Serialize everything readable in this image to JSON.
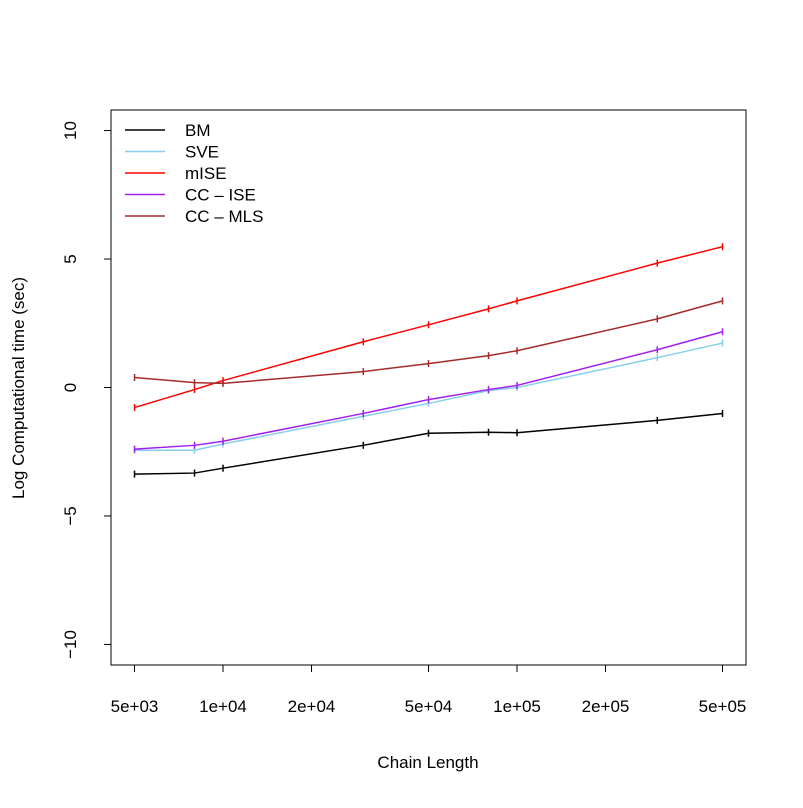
{
  "chart_data": {
    "type": "line",
    "x_label": "Chain Length",
    "y_label": "Log Computational time (sec)",
    "x_log": true,
    "x": [
      5000,
      8000,
      10000,
      30000,
      50000,
      80000,
      100000,
      300000,
      500000
    ],
    "xlim": [
      4159,
      601000
    ],
    "xticks": [
      {
        "value": 5000,
        "label": "5e+03"
      },
      {
        "value": 10000,
        "label": "1e+04"
      },
      {
        "value": 20000,
        "label": "2e+04"
      },
      {
        "value": 50000,
        "label": "5e+04"
      },
      {
        "value": 100000,
        "label": "1e+05"
      },
      {
        "value": 200000,
        "label": "2e+05"
      },
      {
        "value": 500000,
        "label": "5e+05"
      }
    ],
    "ylim": [
      -10.8,
      10.8
    ],
    "yticks": [
      {
        "value": -10,
        "label": "−10"
      },
      {
        "value": -5,
        "label": "−5"
      },
      0,
      5,
      10
    ],
    "legend": "top-left",
    "series": [
      {
        "name": "BM",
        "color": "#000000",
        "values": [
          -3.37,
          -3.33,
          -3.14,
          -2.25,
          -1.78,
          -1.74,
          -1.76,
          -1.28,
          -1.01
        ]
      },
      {
        "name": "SVE",
        "color": "#87ceeb",
        "values": [
          -2.44,
          -2.44,
          -2.2,
          -1.12,
          -0.62,
          -0.12,
          0.0,
          1.16,
          1.73
        ]
      },
      {
        "name": "mISE",
        "color": "#ff0000",
        "values": [
          -0.78,
          -0.08,
          0.27,
          1.78,
          2.44,
          3.06,
          3.37,
          4.84,
          5.48
        ]
      },
      {
        "name": "CC – ISE",
        "color": "#a020f0",
        "values": [
          -2.4,
          -2.25,
          -2.09,
          -1.01,
          -0.47,
          -0.08,
          0.08,
          1.47,
          2.17
        ]
      },
      {
        "name": "CC – MLS",
        "color": "#a52a2a",
        "values": [
          0.39,
          0.19,
          0.16,
          0.62,
          0.93,
          1.24,
          1.43,
          2.67,
          3.37
        ]
      }
    ]
  }
}
